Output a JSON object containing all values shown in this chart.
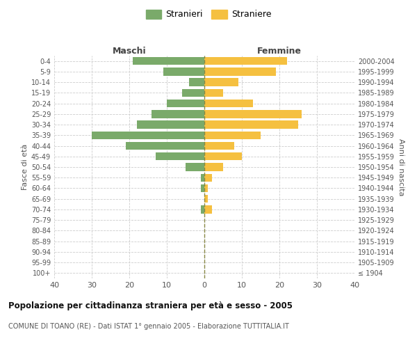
{
  "age_groups": [
    "100+",
    "95-99",
    "90-94",
    "85-89",
    "80-84",
    "75-79",
    "70-74",
    "65-69",
    "60-64",
    "55-59",
    "50-54",
    "45-49",
    "40-44",
    "35-39",
    "30-34",
    "25-29",
    "20-24",
    "15-19",
    "10-14",
    "5-9",
    "0-4"
  ],
  "birth_years": [
    "≤ 1904",
    "1905-1909",
    "1910-1914",
    "1915-1919",
    "1920-1924",
    "1925-1929",
    "1930-1934",
    "1935-1939",
    "1940-1944",
    "1945-1949",
    "1950-1954",
    "1955-1959",
    "1960-1964",
    "1965-1969",
    "1970-1974",
    "1975-1979",
    "1980-1984",
    "1985-1989",
    "1990-1994",
    "1995-1999",
    "2000-2004"
  ],
  "males": [
    0,
    0,
    0,
    0,
    0,
    0,
    1,
    0,
    1,
    1,
    5,
    13,
    21,
    30,
    18,
    14,
    10,
    6,
    4,
    11,
    19
  ],
  "females": [
    0,
    0,
    0,
    0,
    0,
    0,
    2,
    1,
    1,
    2,
    5,
    10,
    8,
    15,
    25,
    26,
    13,
    5,
    9,
    19,
    22
  ],
  "male_color": "#7aaa6a",
  "female_color": "#f5c040",
  "background_color": "#ffffff",
  "grid_color": "#cccccc",
  "title": "Popolazione per cittadinanza straniera per età e sesso - 2005",
  "subtitle": "COMUNE DI TOANO (RE) - Dati ISTAT 1° gennaio 2005 - Elaborazione TUTTITALIA.IT",
  "xlabel_left": "Maschi",
  "xlabel_right": "Femmine",
  "ylabel_left": "Fasce di età",
  "ylabel_right": "Anni di nascita",
  "legend_male": "Stranieri",
  "legend_female": "Straniere",
  "xlim": 40,
  "bar_height": 0.75
}
